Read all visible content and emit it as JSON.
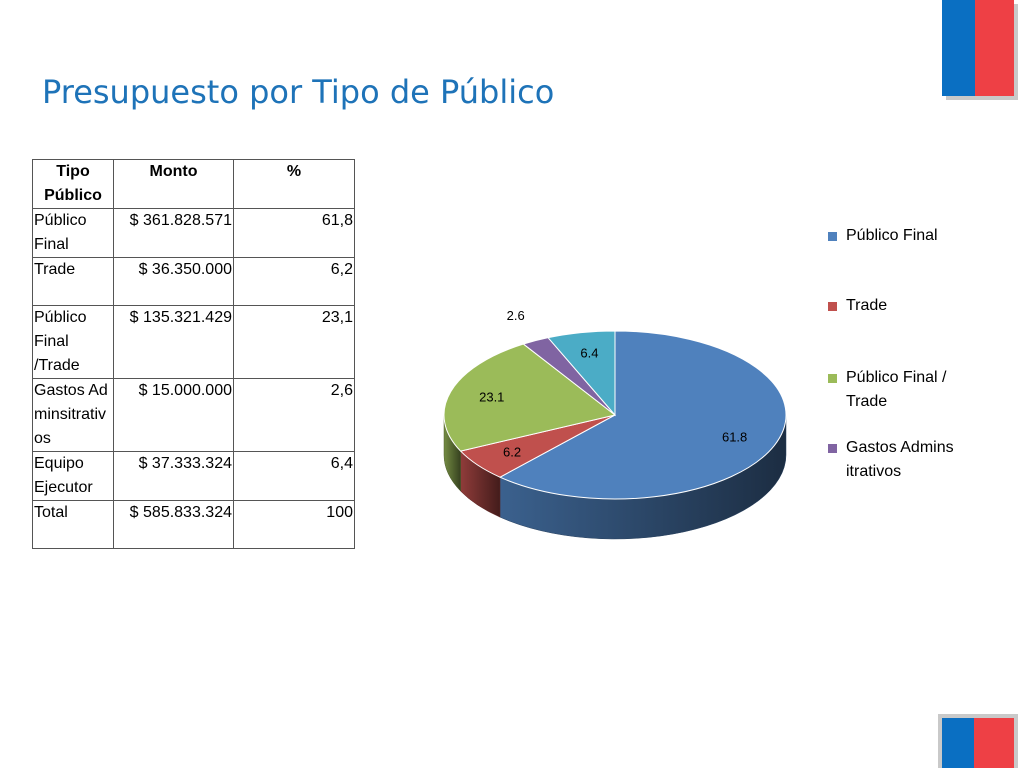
{
  "slide": {
    "title": "Presupuesto por Tipo de Público",
    "flag_colors": {
      "blue": "#0a6fc2",
      "red": "#ee4045"
    }
  },
  "table": {
    "headers": [
      "Tipo Público",
      "Monto",
      "%"
    ],
    "rows": [
      {
        "tipo": "Público Final",
        "monto": "$ 361.828.571",
        "pct": "61,8"
      },
      {
        "tipo": "Trade",
        "monto": "$ 36.350.000",
        "pct": "6,2"
      },
      {
        "tipo": "Público Final /Trade",
        "monto": "$ 135.321.429",
        "pct": "23,1"
      },
      {
        "tipo": "Gastos Adminsitrativos",
        "monto": "$ 15.000.000",
        "pct": "2,6"
      },
      {
        "tipo": "Equipo Ejecutor",
        "monto": "$ 37.333.324",
        "pct": "6,4"
      },
      {
        "tipo": "Total",
        "monto": "$ 585.833.324",
        "pct": "100"
      }
    ]
  },
  "chart_data": {
    "type": "pie",
    "style": "3d",
    "title": "",
    "legend_position": "right",
    "slices": [
      {
        "label": "Público Final",
        "value": 61.8,
        "display": "61.8",
        "color": "#4f81bd",
        "in_legend": true
      },
      {
        "label": "Trade",
        "value": 6.2,
        "display": "6.2",
        "color": "#c0504d",
        "in_legend": true
      },
      {
        "label": "Público Final /Trade",
        "value": 23.1,
        "display": "23.1",
        "color": "#9bbb59",
        "in_legend": true
      },
      {
        "label": "Gastos Adminsitrativos",
        "value": 2.6,
        "display": "2.6",
        "color": "#8064a2",
        "in_legend": true
      },
      {
        "label": "",
        "value": 6.4,
        "display": "6.4",
        "color": "#4bacc6",
        "in_legend": false
      }
    ]
  }
}
